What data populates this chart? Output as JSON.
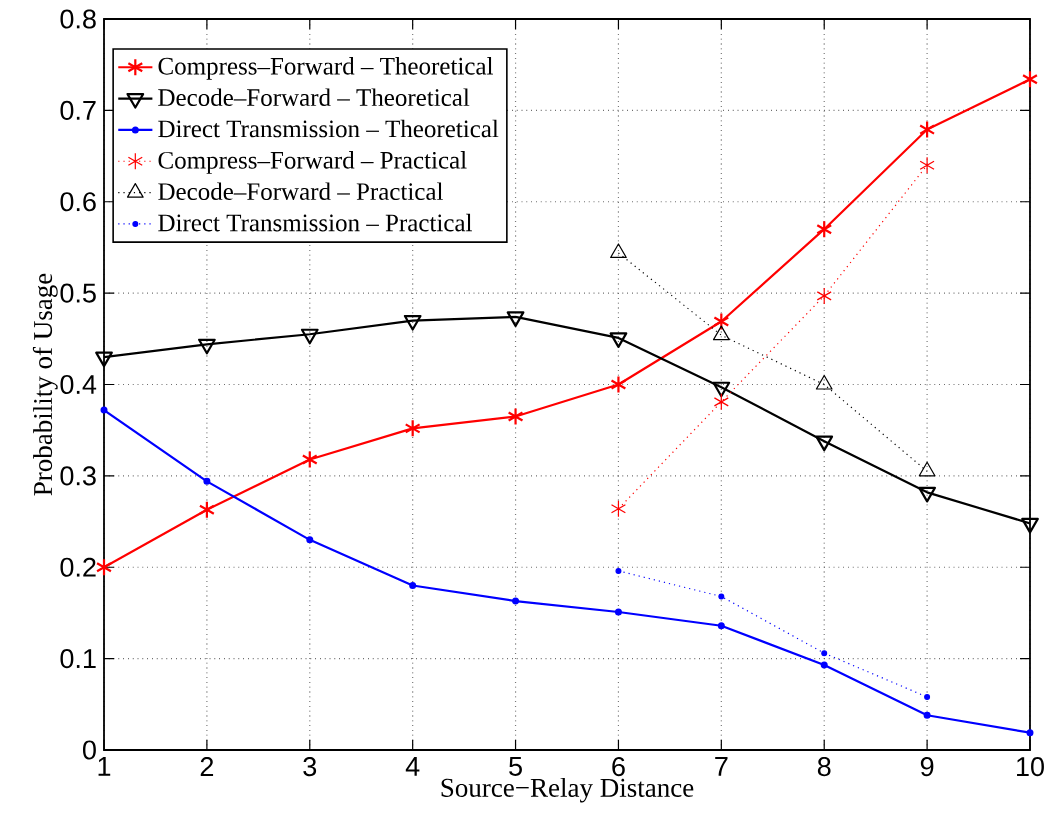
{
  "chart_data": {
    "type": "line",
    "xlabel": "Source−Relay Distance",
    "ylabel": "Probability of Usage",
    "x": [
      1,
      2,
      3,
      4,
      5,
      6,
      7,
      8,
      9,
      10
    ],
    "xlim": [
      1,
      10
    ],
    "xticks": [
      1,
      2,
      3,
      4,
      5,
      6,
      7,
      8,
      9,
      10
    ],
    "ylim": [
      0,
      0.8
    ],
    "yticks": [
      0,
      0.1,
      0.2,
      0.3,
      0.4,
      0.5,
      0.6,
      0.7,
      0.8
    ],
    "grid": true,
    "legend": "top left",
    "series": [
      {
        "name": "Compress–Forward –  Theoretical",
        "color": "#ff0000",
        "marker": "cross",
        "line_style": "solid",
        "values": [
          0.2,
          0.263,
          0.318,
          0.352,
          0.365,
          0.4,
          0.469,
          0.57,
          0.679,
          0.734
        ]
      },
      {
        "name": "Decode–Forward –  Theoretical",
        "color": "#000000",
        "marker": "triangle down",
        "line_style": "solid",
        "values": [
          0.43,
          0.444,
          0.455,
          0.47,
          0.474,
          0.451,
          0.397,
          0.338,
          0.282,
          0.248
        ]
      },
      {
        "name": "Direct Transmission – Theoretical",
        "color": "#0000ff",
        "marker": "circle",
        "line_style": "solid",
        "values": [
          0.372,
          0.294,
          0.23,
          0.18,
          0.163,
          0.151,
          0.136,
          0.093,
          0.038,
          0.019
        ]
      },
      {
        "name": "Compress–Forward – Practical",
        "color": "#ff0000",
        "marker": "cross",
        "line_style": "dotted",
        "x": [
          6,
          7,
          8,
          9
        ],
        "values": [
          0.264,
          0.381,
          0.497,
          0.64
        ]
      },
      {
        "name": "Decode–Forward – Practical",
        "color": "#000000",
        "marker": "triangle",
        "line_style": "dotted",
        "x": [
          6,
          7,
          8,
          9
        ],
        "values": [
          0.544,
          0.454,
          0.4,
          0.305
        ]
      },
      {
        "name": "Direct Transmission – Practical",
        "color": "#0000ff",
        "marker": "circle",
        "line_style": "dotted",
        "x": [
          6,
          7,
          8,
          9
        ],
        "values": [
          0.196,
          0.168,
          0.106,
          0.058
        ]
      }
    ]
  }
}
